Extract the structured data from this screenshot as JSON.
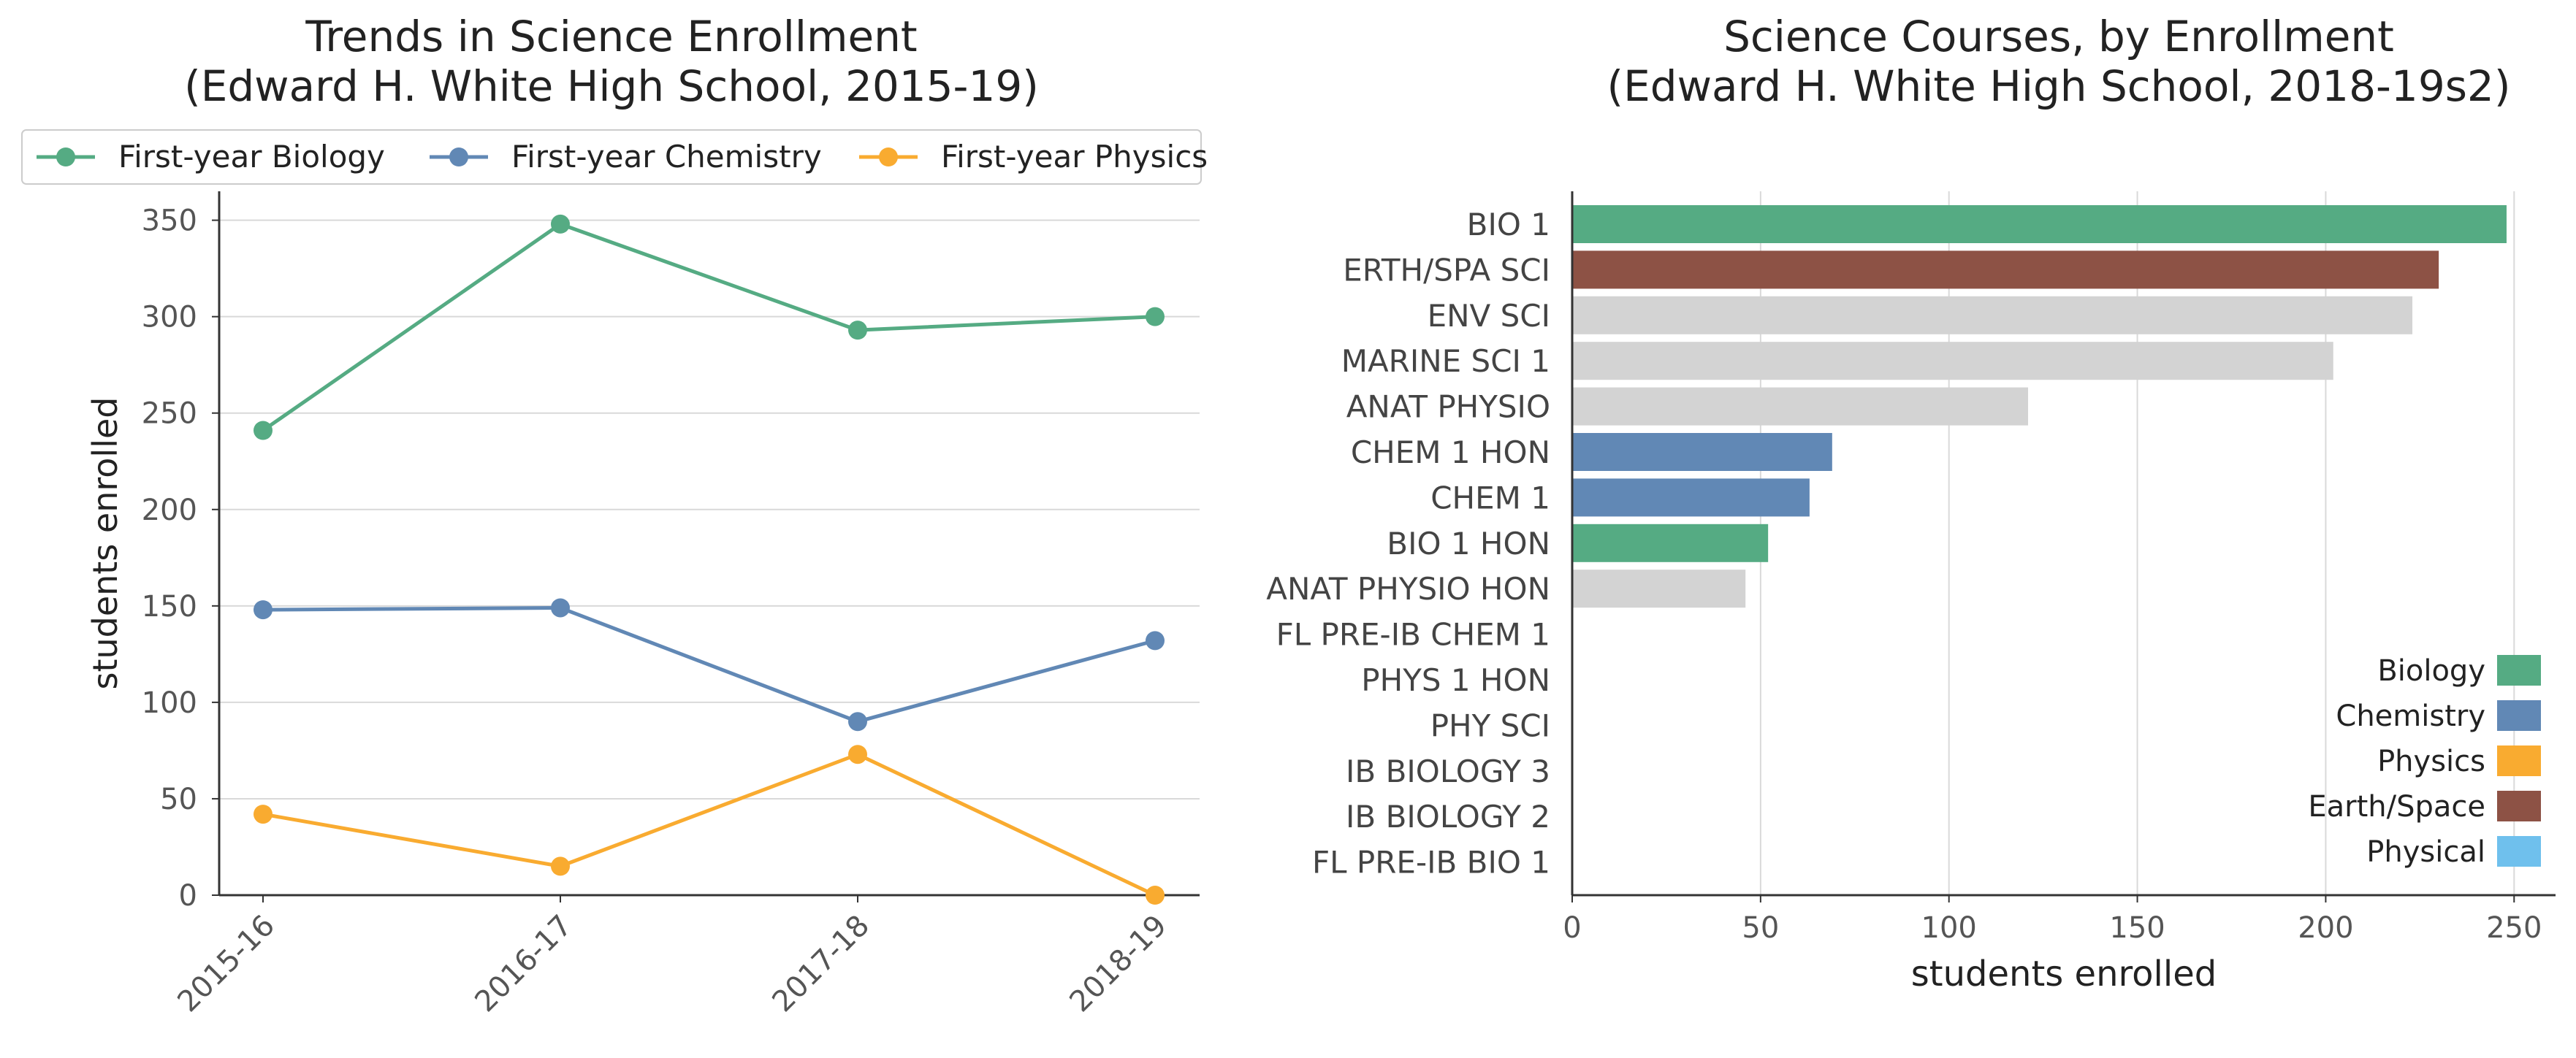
{
  "colors": {
    "biology": "#55ab83",
    "chemistry": "#6188b5",
    "physics": "#f9ab30",
    "earth_space": "#8d5245",
    "physical": "#6fc0ed",
    "other": "#d3d3d3",
    "axis": "#333333",
    "grid": "#d9d9d9",
    "text": "#444444",
    "tick_text": "#555555"
  },
  "chart_data": [
    {
      "type": "line",
      "title": "Trends in Science Enrollment\n(Edward H. White High School, 2015-19)",
      "xlabel": "",
      "ylabel": "students enrolled",
      "categories": [
        "2015-16",
        "2016-17",
        "2017-18",
        "2018-19"
      ],
      "ylim": [
        0,
        365
      ],
      "yticks": [
        0,
        50,
        100,
        150,
        200,
        250,
        300,
        350
      ],
      "grid": "horizontal",
      "legend_position": "top",
      "series": [
        {
          "name": "First-year Biology",
          "color_key": "biology",
          "values": [
            241,
            348,
            293,
            300
          ]
        },
        {
          "name": "First-year Chemistry",
          "color_key": "chemistry",
          "values": [
            148,
            149,
            90,
            132
          ]
        },
        {
          "name": "First-year Physics",
          "color_key": "physics",
          "values": [
            42,
            15,
            73,
            0
          ]
        }
      ]
    },
    {
      "type": "bar",
      "orientation": "horizontal",
      "title": "Science Courses, by Enrollment\n(Edward H. White High School, 2018-19s2)",
      "xlabel": "students enrolled",
      "ylabel": "",
      "xlim": [
        0,
        261
      ],
      "xticks": [
        0,
        50,
        100,
        150,
        200,
        250
      ],
      "grid": "vertical",
      "legend_position": "bottom-right",
      "categories": [
        "BIO 1",
        "ERTH/SPA SCI",
        "ENV SCI",
        "MARINE SCI 1",
        "ANAT PHYSIO",
        "CHEM 1 HON",
        "CHEM 1",
        "BIO 1 HON",
        "ANAT PHYSIO HON",
        "FL PRE-IB CHEM 1",
        "PHYS 1 HON",
        "PHY SCI",
        "IB BIOLOGY 3",
        "IB BIOLOGY 2",
        "FL PRE-IB BIO 1"
      ],
      "values": [
        248,
        230,
        223,
        202,
        121,
        69,
        63,
        52,
        46,
        0,
        0,
        0,
        0,
        0,
        0
      ],
      "bar_color_keys": [
        "biology",
        "earth_space",
        "other",
        "other",
        "other",
        "chemistry",
        "chemistry",
        "biology",
        "other",
        "other",
        "other",
        "other",
        "other",
        "other",
        "other"
      ],
      "legend": [
        {
          "name": "Biology",
          "color_key": "biology"
        },
        {
          "name": "Chemistry",
          "color_key": "chemistry"
        },
        {
          "name": "Physics",
          "color_key": "physics"
        },
        {
          "name": "Earth/Space",
          "color_key": "earth_space"
        },
        {
          "name": "Physical",
          "color_key": "physical"
        }
      ]
    }
  ]
}
